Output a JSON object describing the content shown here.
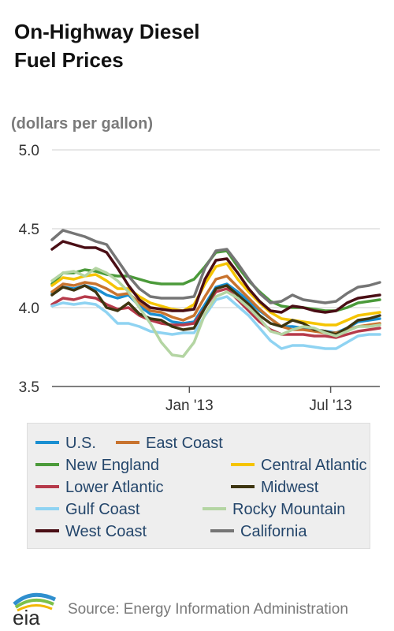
{
  "title_line1": "On-Highway Diesel",
  "title_line2": "Fuel Prices",
  "unit_label": "(dollars per gallon)",
  "source": "Source: Energy Information Administration",
  "logo_text": "eia",
  "chart_data": {
    "type": "line",
    "title": "On-Highway Diesel Fuel Prices",
    "ylabel": "(dollars per gallon)",
    "xlabel": "",
    "ylim": [
      3.5,
      5.0
    ],
    "yticks": [
      "3.5",
      "4.0",
      "4.5",
      "5.0"
    ],
    "xlim": [
      "2012-07-09",
      "2013-09-02"
    ],
    "xticks": [
      {
        "label": "Jan '13",
        "date": "2013-01-01"
      },
      {
        "label": "Jul '13",
        "date": "2013-07-01"
      }
    ],
    "grid": true,
    "legend_position": "bottom",
    "x": [
      "2012-07-09",
      "2012-07-23",
      "2012-08-06",
      "2012-08-20",
      "2012-09-03",
      "2012-09-17",
      "2012-10-01",
      "2012-10-15",
      "2012-10-29",
      "2012-11-12",
      "2012-11-26",
      "2012-12-10",
      "2012-12-24",
      "2013-01-07",
      "2013-01-21",
      "2013-02-04",
      "2013-02-18",
      "2013-03-04",
      "2013-03-18",
      "2013-04-01",
      "2013-04-15",
      "2013-04-29",
      "2013-05-13",
      "2013-05-27",
      "2013-06-10",
      "2013-06-24",
      "2013-07-08",
      "2013-07-22",
      "2013-08-05",
      "2013-08-19",
      "2013-09-02"
    ],
    "series": [
      {
        "name": "U.S.",
        "color": "#1a8fd1",
        "values": [
          4.09,
          4.13,
          4.12,
          4.14,
          4.12,
          4.08,
          4.06,
          4.08,
          4.01,
          3.96,
          3.95,
          3.91,
          3.9,
          3.91,
          4.02,
          4.13,
          4.15,
          4.1,
          4.04,
          3.98,
          3.93,
          3.88,
          3.88,
          3.87,
          3.86,
          3.85,
          3.84,
          3.87,
          3.91,
          3.92,
          3.93
        ]
      },
      {
        "name": "East Coast",
        "color": "#c8732e",
        "values": [
          4.1,
          4.15,
          4.14,
          4.16,
          4.15,
          4.12,
          4.08,
          4.09,
          4.03,
          3.98,
          3.97,
          3.94,
          3.92,
          3.95,
          4.07,
          4.18,
          4.2,
          4.13,
          4.06,
          3.99,
          3.93,
          3.88,
          3.86,
          3.86,
          3.85,
          3.84,
          3.84,
          3.86,
          3.88,
          3.89,
          3.9
        ]
      },
      {
        "name": "New England",
        "color": "#4b9a3a",
        "values": [
          4.15,
          4.22,
          4.22,
          4.24,
          4.23,
          4.21,
          4.2,
          4.2,
          4.18,
          4.16,
          4.15,
          4.15,
          4.15,
          4.18,
          4.26,
          4.35,
          4.36,
          4.26,
          4.17,
          4.1,
          4.04,
          4.01,
          4.0,
          4.0,
          3.99,
          3.98,
          3.98,
          4.0,
          4.03,
          4.04,
          4.05
        ]
      },
      {
        "name": "Central Atlantic",
        "color": "#f5c400",
        "values": [
          4.14,
          4.19,
          4.18,
          4.2,
          4.21,
          4.17,
          4.12,
          4.12,
          4.07,
          4.03,
          4.01,
          3.99,
          3.98,
          4.02,
          4.15,
          4.26,
          4.28,
          4.18,
          4.1,
          4.03,
          3.97,
          3.93,
          3.92,
          3.91,
          3.9,
          3.89,
          3.89,
          3.92,
          3.95,
          3.96,
          3.97
        ]
      },
      {
        "name": "Lower Atlantic",
        "color": "#b63a4a",
        "values": [
          4.02,
          4.06,
          4.05,
          4.07,
          4.06,
          4.02,
          3.99,
          4.0,
          3.95,
          3.92,
          3.9,
          3.89,
          3.89,
          3.9,
          4.0,
          4.1,
          4.12,
          4.05,
          3.98,
          3.91,
          3.86,
          3.83,
          3.83,
          3.83,
          3.82,
          3.82,
          3.81,
          3.83,
          3.85,
          3.86,
          3.87
        ]
      },
      {
        "name": "Midwest",
        "color": "#3d3510",
        "values": [
          4.08,
          4.13,
          4.11,
          4.14,
          4.1,
          4.0,
          3.98,
          4.03,
          3.96,
          3.93,
          3.92,
          3.88,
          3.86,
          3.87,
          4.0,
          4.12,
          4.14,
          4.08,
          4.02,
          3.95,
          3.9,
          3.88,
          3.92,
          3.9,
          3.86,
          3.85,
          3.83,
          3.87,
          3.92,
          3.93,
          3.95
        ]
      },
      {
        "name": "Gulf Coast",
        "color": "#8fd3f2",
        "values": [
          4.01,
          4.03,
          4.02,
          4.03,
          4.02,
          3.97,
          3.9,
          3.9,
          3.88,
          3.85,
          3.84,
          3.83,
          3.84,
          3.84,
          3.95,
          4.05,
          4.07,
          4.01,
          3.95,
          3.87,
          3.79,
          3.74,
          3.76,
          3.76,
          3.75,
          3.74,
          3.74,
          3.78,
          3.82,
          3.83,
          3.83
        ]
      },
      {
        "name": "Rocky Mountain",
        "color": "#b4d5a3",
        "values": [
          4.17,
          4.22,
          4.23,
          4.2,
          4.25,
          4.22,
          4.17,
          4.1,
          4.0,
          3.9,
          3.78,
          3.7,
          3.69,
          3.78,
          3.96,
          4.07,
          4.1,
          4.06,
          4.0,
          3.93,
          3.85,
          3.83,
          3.86,
          3.88,
          3.87,
          3.84,
          3.82,
          3.85,
          3.88,
          3.88,
          3.89
        ]
      },
      {
        "name": "West Coast",
        "color": "#4a0e15",
        "values": [
          4.37,
          4.42,
          4.4,
          4.38,
          4.38,
          4.35,
          4.25,
          4.14,
          4.05,
          4.0,
          3.99,
          3.98,
          3.98,
          3.99,
          4.18,
          4.3,
          4.31,
          4.22,
          4.12,
          4.04,
          3.98,
          3.97,
          4.01,
          4.0,
          3.98,
          3.97,
          3.98,
          4.03,
          4.06,
          4.07,
          4.08
        ]
      },
      {
        "name": "California",
        "color": "#757575",
        "values": [
          4.43,
          4.49,
          4.47,
          4.45,
          4.42,
          4.4,
          4.3,
          4.2,
          4.12,
          4.07,
          4.06,
          4.06,
          4.06,
          4.07,
          4.25,
          4.36,
          4.37,
          4.28,
          4.18,
          4.09,
          4.03,
          4.04,
          4.08,
          4.05,
          4.04,
          4.03,
          4.04,
          4.09,
          4.13,
          4.14,
          4.16
        ]
      }
    ]
  },
  "legend": [
    {
      "label": "U.S.",
      "color": "#1a8fd1"
    },
    {
      "label": "East Coast",
      "color": "#c8732e"
    },
    {
      "label": "New England",
      "color": "#4b9a3a"
    },
    {
      "label": "Central Atlantic",
      "color": "#f5c400"
    },
    {
      "label": "Lower Atlantic",
      "color": "#b63a4a"
    },
    {
      "label": "Midwest",
      "color": "#3d3510"
    },
    {
      "label": "Gulf Coast",
      "color": "#8fd3f2"
    },
    {
      "label": "Rocky Mountain",
      "color": "#b4d5a3"
    },
    {
      "label": "West Coast",
      "color": "#4a0e15"
    },
    {
      "label": "California",
      "color": "#757575"
    }
  ]
}
